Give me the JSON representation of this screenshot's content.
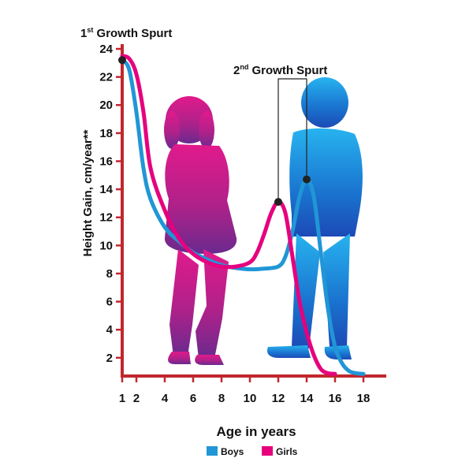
{
  "chart_data": {
    "type": "line",
    "title": "",
    "xlabel": "Age in years",
    "ylabel": "Height Gain, cm/year**",
    "xlim": [
      1,
      20
    ],
    "ylim": [
      0.7,
      24
    ],
    "x_ticks": [
      1,
      2,
      4,
      6,
      8,
      10,
      12,
      14,
      16,
      18
    ],
    "y_ticks": [
      2,
      4,
      6,
      8,
      10,
      12,
      14,
      16,
      18,
      20,
      22,
      24
    ],
    "grid": false,
    "legend_position": "bottom-center",
    "annotations": [
      {
        "number": "1",
        "suffix": "st",
        "text": "Growth Spurt",
        "x": 1,
        "y": 23.2
      },
      {
        "number": "2",
        "suffix": "nd",
        "text": "Growth Spurt",
        "points": [
          {
            "x": 12,
            "y": 13.1
          },
          {
            "x": 14,
            "y": 14.7
          }
        ]
      }
    ],
    "series": [
      {
        "name": "Boys",
        "color": "#2196d6",
        "x": [
          1,
          1.5,
          2,
          2.5,
          3,
          4,
          5,
          6,
          7,
          8,
          9,
          10,
          11,
          12,
          12.5,
          13,
          13.5,
          14,
          14.5,
          15,
          15.5,
          16,
          16.5,
          17,
          17.5,
          18
        ],
        "y": [
          23.2,
          22.5,
          19.5,
          15.5,
          13.3,
          11.3,
          10.3,
          9.5,
          9.0,
          8.6,
          8.4,
          8.3,
          8.35,
          8.5,
          9.2,
          11.0,
          13.5,
          14.7,
          13.5,
          9.5,
          5.5,
          2.8,
          1.6,
          1.05,
          0.9,
          0.85
        ]
      },
      {
        "name": "Girls",
        "color": "#e6007e",
        "x": [
          1,
          1.5,
          2,
          2.5,
          3,
          4,
          5,
          6,
          7,
          8,
          9,
          10,
          10.5,
          11,
          11.5,
          12,
          12.5,
          13,
          13.5,
          14,
          14.5,
          15,
          15.5,
          16
        ],
        "y": [
          23.5,
          23.3,
          22.2,
          19.5,
          15.5,
          12.5,
          10.5,
          9.4,
          8.8,
          8.5,
          8.5,
          8.8,
          9.5,
          10.8,
          12.3,
          13.1,
          12.3,
          9.2,
          6.0,
          3.8,
          2.2,
          1.2,
          0.9,
          0.85
        ]
      }
    ]
  }
}
